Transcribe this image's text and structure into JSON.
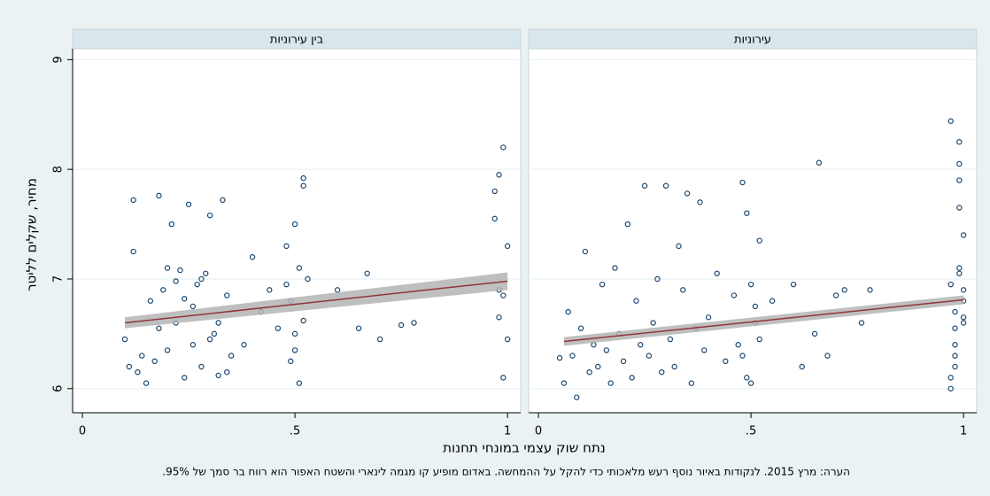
{
  "chart_data": {
    "type": "scatter",
    "y_label": "מחיר, שקלים לליטר",
    "x_label": "נתח שוק עצמי במונחי תחנות",
    "note": "הערה: מרץ 2015. לנקודות באיור נוסף רעש מלאכותי כדי להקל על ההמחשה. באדום מופיע קו מגמה לינארי והשטח האפור הוא רווח בר סמך של 95%.",
    "xlim": [
      -0.023,
      1.031
    ],
    "ylim": [
      5.78,
      9.1
    ],
    "xticks": [
      0,
      {
        "value": 0.5,
        "label": ".5"
      },
      1
    ],
    "yticks": [
      6,
      7,
      8,
      9
    ],
    "grid": true,
    "marker_color": "#1a476f",
    "fit_color": "#90353b",
    "ci_color": "#b4b4b4",
    "panels": [
      {
        "title": "בין עירוניות",
        "x": [
          0.1,
          0.11,
          0.12,
          0.13,
          0.14,
          0.15,
          0.16,
          0.17,
          0.18,
          0.19,
          0.2,
          0.21,
          0.22,
          0.23,
          0.24,
          0.25,
          0.26,
          0.27,
          0.28,
          0.29,
          0.3,
          0.31,
          0.32,
          0.33,
          0.34,
          0.35,
          0.12,
          0.18,
          0.22,
          0.26,
          0.3,
          0.34,
          0.2,
          0.24,
          0.28,
          0.32,
          0.38,
          0.4,
          0.42,
          0.44,
          0.46,
          0.48,
          0.49,
          0.5,
          0.51,
          0.52,
          0.48,
          0.5,
          0.52,
          0.49,
          0.51,
          0.5,
          0.53,
          0.52,
          0.6,
          0.65,
          0.67,
          0.7,
          0.75,
          0.78,
          0.97,
          0.98,
          0.99,
          1.0,
          0.98,
          0.99,
          0.97,
          1.0,
          0.99,
          0.98
        ],
        "y": [
          6.45,
          6.2,
          7.72,
          6.15,
          6.3,
          6.05,
          6.8,
          6.25,
          7.76,
          6.9,
          6.35,
          7.5,
          6.6,
          7.08,
          6.1,
          7.68,
          6.4,
          6.95,
          6.2,
          7.05,
          7.58,
          6.5,
          6.12,
          7.72,
          6.85,
          6.3,
          7.25,
          6.55,
          6.98,
          6.75,
          6.45,
          6.15,
          7.1,
          6.82,
          7.0,
          6.6,
          6.4,
          7.2,
          6.7,
          6.9,
          6.55,
          7.3,
          6.25,
          7.5,
          6.05,
          7.92,
          6.95,
          6.5,
          7.85,
          6.8,
          7.1,
          6.35,
          7.0,
          6.62,
          6.9,
          6.55,
          7.05,
          6.45,
          6.58,
          6.6,
          7.8,
          6.65,
          8.2,
          7.3,
          6.9,
          6.1,
          7.55,
          6.45,
          6.85,
          7.95
        ],
        "fit": {
          "x": [
            0.1,
            1
          ],
          "y": [
            6.6,
            6.98
          ],
          "lower": [
            6.55,
            6.9
          ],
          "upper": [
            6.65,
            7.06
          ]
        }
      },
      {
        "title": "עירוניות",
        "x": [
          0.05,
          0.06,
          0.07,
          0.08,
          0.09,
          0.1,
          0.11,
          0.12,
          0.13,
          0.14,
          0.15,
          0.16,
          0.17,
          0.18,
          0.19,
          0.2,
          0.21,
          0.22,
          0.23,
          0.24,
          0.25,
          0.26,
          0.27,
          0.28,
          0.29,
          0.3,
          0.31,
          0.32,
          0.33,
          0.34,
          0.35,
          0.36,
          0.37,
          0.38,
          0.39,
          0.4,
          0.42,
          0.44,
          0.46,
          0.47,
          0.48,
          0.49,
          0.5,
          0.51,
          0.52,
          0.48,
          0.49,
          0.5,
          0.51,
          0.52,
          0.55,
          0.6,
          0.62,
          0.65,
          0.66,
          0.68,
          0.7,
          0.72,
          0.76,
          0.78,
          0.97,
          0.98,
          0.99,
          1.0,
          0.97,
          0.98,
          0.99,
          1.0,
          0.98,
          0.99,
          1.0,
          0.97,
          0.98,
          0.99,
          1.0,
          0.98,
          0.99,
          0.97,
          1.0,
          0.99
        ],
        "y": [
          6.28,
          6.05,
          6.7,
          6.3,
          5.92,
          6.55,
          7.25,
          6.15,
          6.4,
          6.2,
          6.95,
          6.35,
          6.05,
          7.1,
          6.5,
          6.25,
          7.5,
          6.1,
          6.8,
          6.4,
          7.85,
          6.3,
          6.6,
          7.0,
          6.15,
          7.85,
          6.45,
          6.2,
          7.3,
          6.9,
          7.78,
          6.05,
          6.55,
          7.7,
          6.35,
          6.65,
          7.05,
          6.25,
          6.85,
          6.4,
          7.88,
          6.1,
          6.95,
          6.6,
          7.35,
          6.3,
          7.6,
          6.05,
          6.75,
          6.45,
          6.8,
          6.95,
          6.2,
          6.5,
          8.06,
          6.3,
          6.85,
          6.9,
          6.6,
          6.9,
          6.0,
          6.55,
          7.9,
          6.8,
          8.44,
          6.3,
          7.05,
          6.65,
          6.2,
          8.25,
          7.4,
          6.1,
          6.7,
          7.65,
          6.9,
          6.4,
          8.05,
          6.95,
          6.6,
          7.1
        ],
        "fit": {
          "x": [
            0.06,
            1
          ],
          "y": [
            6.43,
            6.81
          ],
          "lower": [
            6.39,
            6.77
          ],
          "upper": [
            6.47,
            6.85
          ]
        }
      }
    ]
  }
}
